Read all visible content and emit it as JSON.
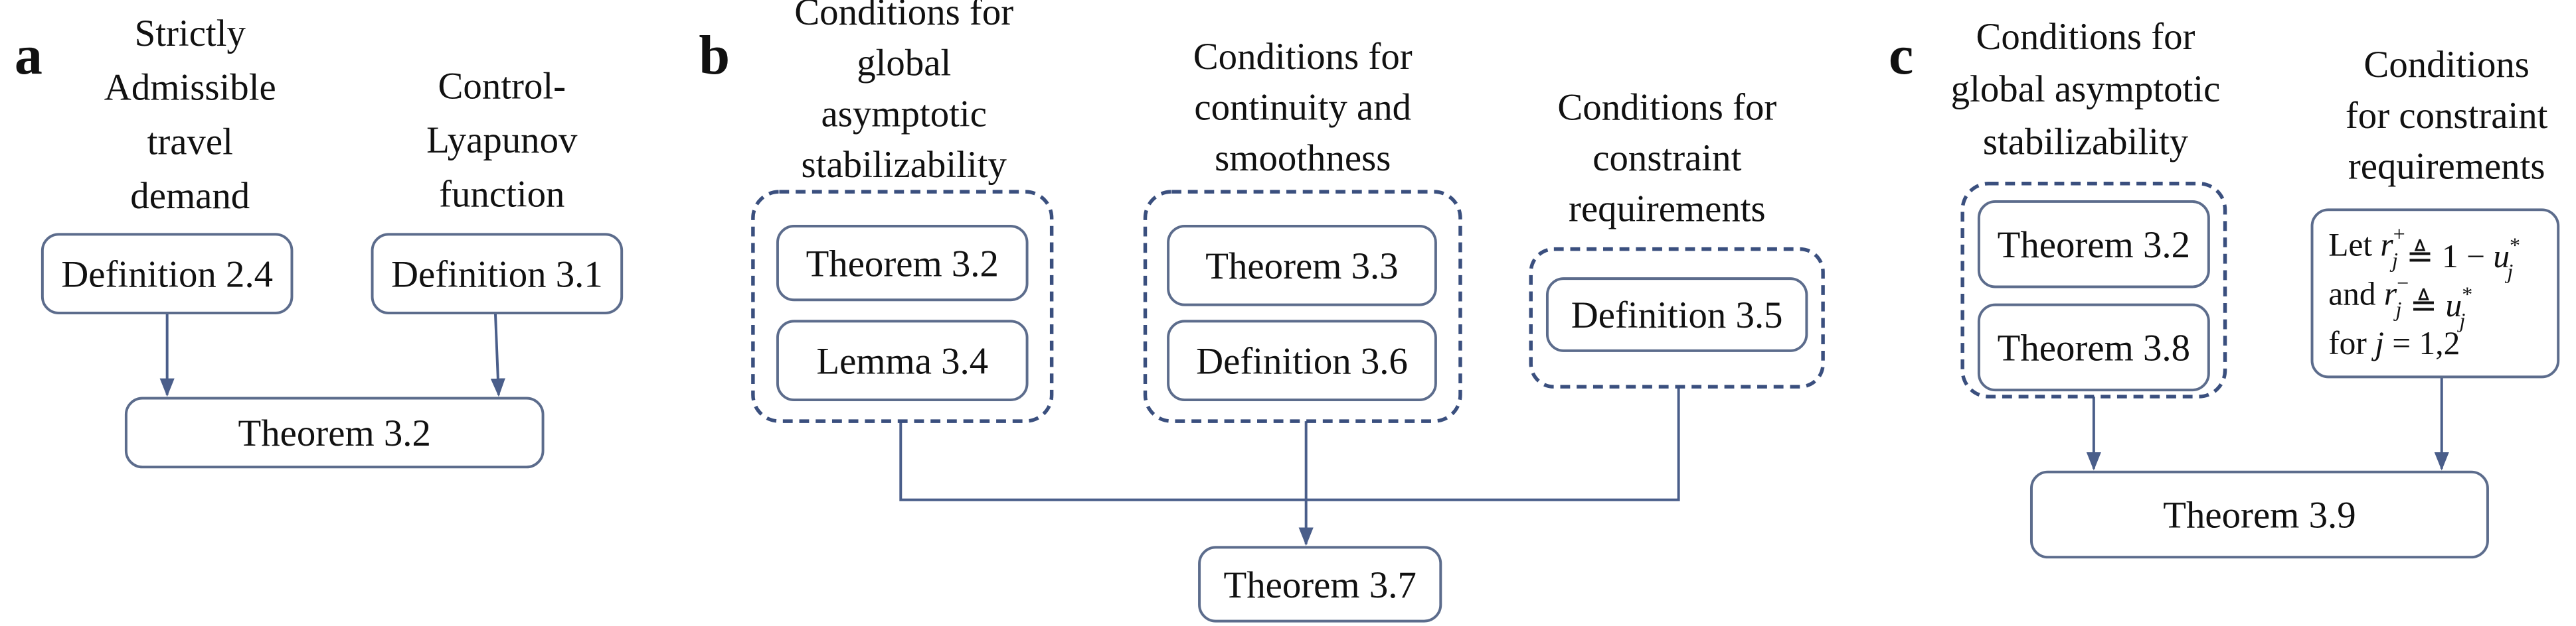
{
  "panels": [
    {
      "label": "a",
      "headings": [
        {
          "lines": [
            "Strictly",
            "Admissible",
            "travel",
            "demand"
          ]
        },
        {
          "lines": [
            "Control-",
            "Lyapunov",
            "function"
          ]
        }
      ],
      "boxes": [
        {
          "text": "Definition 2.4"
        },
        {
          "text": "Definition 3.1"
        },
        {
          "text": "Theorem 3.2"
        }
      ]
    },
    {
      "label": "b",
      "headings": [
        {
          "lines": [
            "Conditions for",
            "global",
            "asymptotic",
            "stabilizability"
          ]
        },
        {
          "lines": [
            "Conditions for",
            "continuity and",
            "smoothness"
          ]
        },
        {
          "lines": [
            "Conditions for",
            "constraint",
            "requirements"
          ]
        }
      ],
      "boxes": [
        {
          "text": "Theorem 3.2"
        },
        {
          "text": "Lemma 3.4"
        },
        {
          "text": "Theorem 3.3"
        },
        {
          "text": "Definition 3.6"
        },
        {
          "text": "Definition 3.5"
        },
        {
          "text": "Theorem 3.7"
        }
      ]
    },
    {
      "label": "c",
      "headings": [
        {
          "lines": [
            "Conditions for",
            "global asymptotic",
            "stabilizability"
          ]
        },
        {
          "lines": [
            "Conditions",
            "for constraint",
            "requirements"
          ]
        }
      ],
      "boxes": [
        {
          "text": "Theorem 3.2"
        },
        {
          "text": "Theorem 3.8"
        },
        {
          "lines": [
            [
              {
                "text": "Let"
              },
              {
                "text": "r",
                "sub": "j",
                "sup": "+"
              },
              {
                "text": "≜ 1 −"
              },
              {
                "text": "u",
                "sub": "j",
                "sup": "*"
              }
            ],
            [
              {
                "text": "and"
              },
              {
                "text": "r",
                "sub": "j",
                "sup": "−"
              },
              {
                "text": "≜"
              },
              {
                "text": "u",
                "sub": "j",
                "sup": "*"
              }
            ],
            [
              {
                "text": "for"
              },
              {
                "text": "j"
              },
              {
                "text": "= 1,2"
              }
            ]
          ]
        },
        {
          "text": "Theorem 3.9"
        }
      ]
    }
  ]
}
